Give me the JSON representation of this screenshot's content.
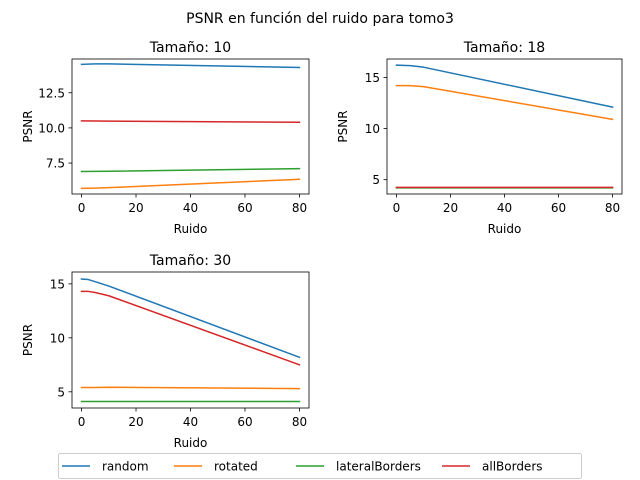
{
  "figure": {
    "suptitle": "PSNR en función del ruido para tomo3"
  },
  "chart_data": [
    {
      "type": "line",
      "title": "Tamaño: 10",
      "xlabel": "Ruido",
      "ylabel": "PSNR",
      "x": [
        0,
        5,
        10,
        80
      ],
      "xlim": [
        -3.5,
        83.5
      ],
      "ylim": [
        5.3,
        14.9
      ],
      "xticks": [
        0,
        20,
        40,
        60,
        80
      ],
      "yticks": [
        7.5,
        10.0,
        12.5
      ],
      "ytick_labels": [
        "7.5",
        "10.0",
        "12.5"
      ],
      "series": [
        {
          "name": "random",
          "values": [
            14.52,
            14.55,
            14.55,
            14.3
          ]
        },
        {
          "name": "rotated",
          "values": [
            5.7,
            5.72,
            5.75,
            6.35
          ]
        },
        {
          "name": "lateralBorders",
          "values": [
            6.9,
            6.91,
            6.92,
            7.1
          ]
        },
        {
          "name": "allBorders",
          "values": [
            10.5,
            10.49,
            10.48,
            10.4
          ]
        }
      ]
    },
    {
      "type": "line",
      "title": "Tamaño: 18",
      "xlabel": "Ruido",
      "ylabel": "PSNR",
      "x": [
        0,
        5,
        10,
        80
      ],
      "xlim": [
        -3.5,
        83.5
      ],
      "ylim": [
        3.6,
        16.8
      ],
      "xticks": [
        0,
        20,
        40,
        60,
        80
      ],
      "yticks": [
        5,
        10,
        15
      ],
      "ytick_labels": [
        "5",
        "10",
        "15"
      ],
      "series": [
        {
          "name": "random",
          "values": [
            16.2,
            16.15,
            16.0,
            12.1
          ]
        },
        {
          "name": "rotated",
          "values": [
            14.2,
            14.2,
            14.1,
            10.9
          ]
        },
        {
          "name": "lateralBorders",
          "values": [
            4.2,
            4.2,
            4.2,
            4.2
          ]
        },
        {
          "name": "allBorders",
          "values": [
            4.25,
            4.25,
            4.25,
            4.25
          ]
        }
      ]
    },
    {
      "type": "line",
      "title": "Tamaño: 30",
      "xlabel": "Ruido",
      "ylabel": "PSNR",
      "x": [
        0,
        2.5,
        5,
        10,
        80
      ],
      "xlim": [
        -3.5,
        83.5
      ],
      "ylim": [
        3.5,
        16.1
      ],
      "xticks": [
        0,
        20,
        40,
        60,
        80
      ],
      "yticks": [
        5,
        10,
        15
      ],
      "ytick_labels": [
        "5",
        "10",
        "15"
      ],
      "series": [
        {
          "name": "random",
          "values": [
            15.45,
            15.4,
            15.2,
            14.8,
            8.2
          ]
        },
        {
          "name": "rotated",
          "values": [
            5.4,
            5.4,
            5.4,
            5.42,
            5.3
          ]
        },
        {
          "name": "lateralBorders",
          "values": [
            4.1,
            4.1,
            4.1,
            4.1,
            4.1
          ]
        },
        {
          "name": "allBorders",
          "values": [
            14.3,
            14.3,
            14.2,
            13.9,
            7.5
          ]
        }
      ]
    }
  ],
  "legend": {
    "placement": "bottom",
    "entries": [
      "random",
      "rotated",
      "lateralBorders",
      "allBorders"
    ]
  },
  "colors": {
    "series": [
      "#1f77b4",
      "#ff7f0e",
      "#2ca02c",
      "#d62728"
    ],
    "axes": "#000000",
    "legend_frame": "#cccccc"
  }
}
